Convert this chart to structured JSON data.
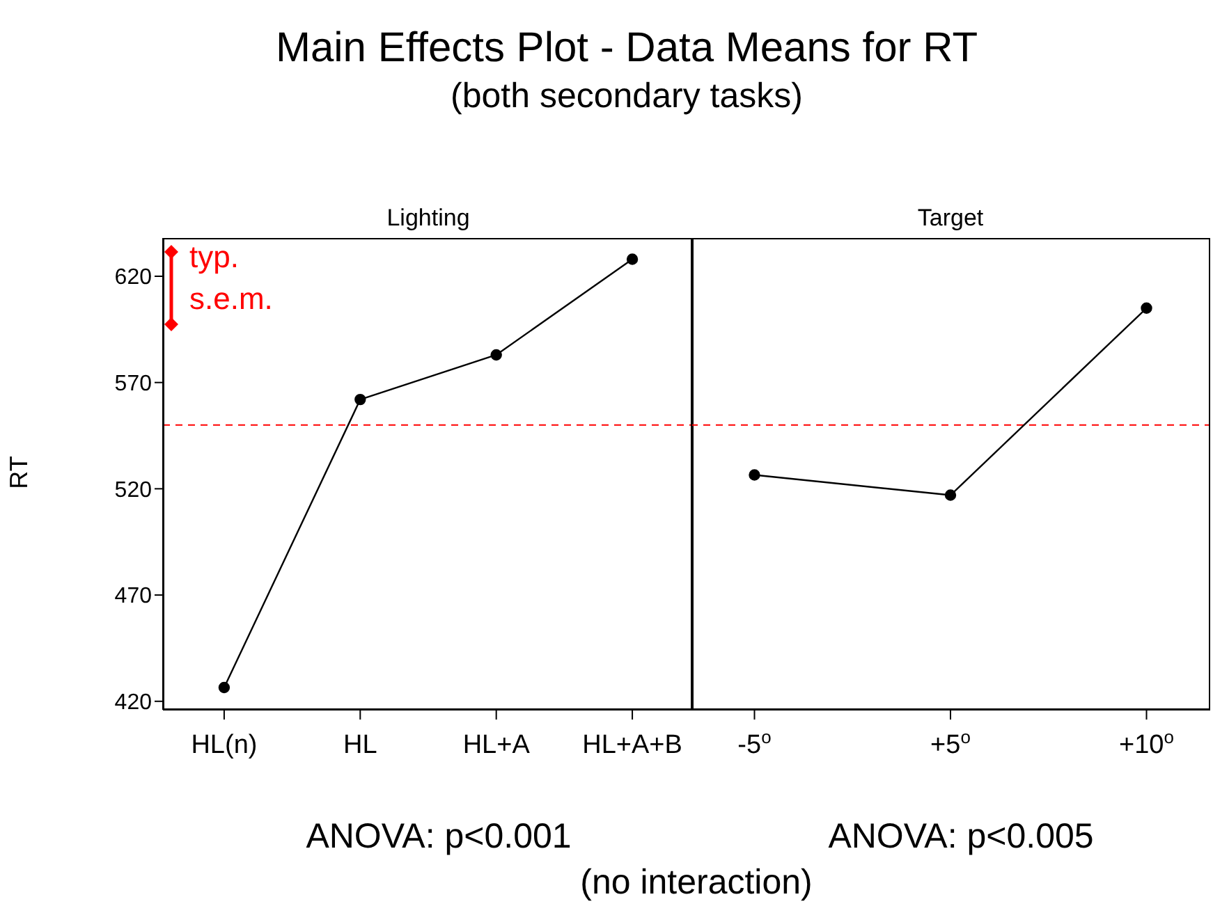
{
  "chart_data": [
    {
      "type": "line",
      "title": "Main Effects Plot - Data Means for RT",
      "subtitle": "(both secondary tasks)",
      "xlabel": "Lighting",
      "ylabel": "RT",
      "categories": [
        "HL(n)",
        "HL",
        "HL+A",
        "HL+A+B"
      ],
      "series": [
        {
          "color": "#000000",
          "values": [
            426.5,
            562,
            583,
            628
          ]
        }
      ],
      "ylim": [
        416,
        638
      ],
      "yticks": [
        420,
        470,
        520,
        570,
        620
      ],
      "marker": "circle",
      "grid": false,
      "legend": false,
      "ref_lines": [
        {
          "axis": "y",
          "value": 550,
          "color": "#ff0000",
          "line_style": "dashed"
        }
      ],
      "annotations": [
        "typ. s.e.m.",
        "ANOVA: p<0.001",
        "(no interaction)"
      ]
    },
    {
      "type": "line",
      "xlabel": "Target",
      "categories": [
        "-5$^{o}$",
        "+5$^{o}$",
        "+10$^{o}$"
      ],
      "series": [
        {
          "color": "#000000",
          "values": [
            526.5,
            517,
            605
          ]
        }
      ],
      "ylim": [
        416,
        638
      ],
      "yticks": [
        420,
        470,
        520,
        570,
        620
      ],
      "marker": "circle",
      "grid": false,
      "legend": false,
      "tick_labels": "x",
      "ref_lines": [
        {
          "axis": "y",
          "value": 550,
          "color": "#ff0000",
          "line_style": "dashed"
        }
      ],
      "annotations": [
        "ANOVA: p<0.005"
      ]
    }
  ]
}
